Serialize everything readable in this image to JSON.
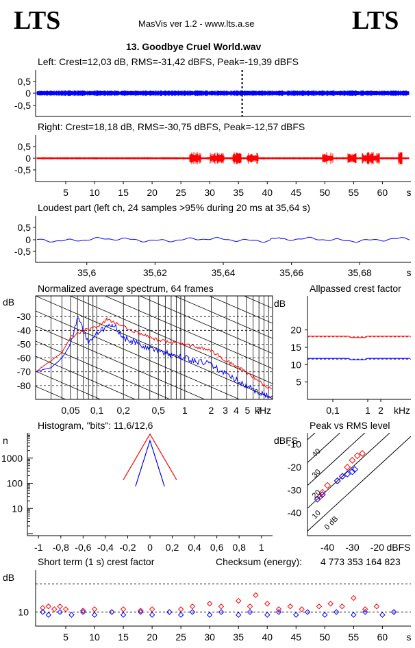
{
  "header": {
    "logo_left": "LTS",
    "logo_right": "LTS",
    "app_title": "MasVis ver 1.2 - www.lts.a.se",
    "file_title": "13. Goodbye Cruel World.wav"
  },
  "colors": {
    "left": "#0000ff",
    "right": "#ff0000",
    "marker": "#000000",
    "grid": "#000000"
  },
  "chart_data": [
    {
      "id": "left_waveform",
      "type": "line",
      "title": "Left: Crest=12,03 dB, RMS=-31,42 dBFS, Peak=-19,39 dBFS",
      "yticks": [
        "0,5",
        "0",
        "-0,5"
      ],
      "ylim": [
        -1,
        1
      ],
      "xlim": [
        0,
        64
      ],
      "marker_x": 35.64,
      "color": "#0000ff",
      "envelope_peak": 0.06
    },
    {
      "id": "right_waveform",
      "type": "line",
      "title": "Right: Crest=18,18 dB, RMS=-30,75 dBFS, Peak=-12,57 dBFS",
      "yticks": [
        "0,5",
        "0",
        "-0,5"
      ],
      "ylim": [
        -1,
        1
      ],
      "xlim": [
        0,
        64
      ],
      "xticks": [
        "5",
        "10",
        "15",
        "20",
        "25",
        "30",
        "35",
        "40",
        "45",
        "50",
        "55",
        "60"
      ],
      "xunit": "s",
      "color": "#ff0000",
      "bursts": [
        [
          26.5,
          28.5
        ],
        [
          30,
          32.5
        ],
        [
          34,
          35.5
        ],
        [
          36.5,
          38.5
        ],
        [
          49.5,
          51.5
        ],
        [
          54,
          55.5
        ],
        [
          56.5,
          59.5
        ],
        [
          62.8,
          63.5
        ]
      ]
    },
    {
      "id": "loudest_part",
      "type": "line",
      "title": "Loudest part (left  ch, 24 samples >95% during 20 ms at 35,64 s)",
      "yticks": [
        "0,5",
        "0",
        "-0,5"
      ],
      "ylim": [
        -1,
        1
      ],
      "xlim": [
        35.585,
        35.695
      ],
      "xticks": [
        "35,6",
        "35,62",
        "35,64",
        "35,66",
        "35,68"
      ],
      "xunit": "s",
      "color": "#0000ff"
    },
    {
      "id": "spectrum",
      "type": "line",
      "title": "Normalized average spectrum, 64 frames",
      "ylabel": "dB",
      "yticks": [
        "-30",
        "-40",
        "-50",
        "-60",
        "-70",
        "-80"
      ],
      "ylim": [
        -90,
        -15
      ],
      "xticks": [
        "0,05",
        "0,1",
        "0,2",
        "0,5",
        "1",
        "2",
        "3",
        "4",
        "5",
        "7"
      ],
      "xunit": "kHz",
      "xscale": "log",
      "series": [
        {
          "color": "#ff0000",
          "points": [
            [
              0.02,
              -70
            ],
            [
              0.03,
              -62
            ],
            [
              0.04,
              -56
            ],
            [
              0.05,
              -45
            ],
            [
              0.07,
              -40
            ],
            [
              0.1,
              -38
            ],
            [
              0.13,
              -32
            ],
            [
              0.2,
              -37
            ],
            [
              0.3,
              -42
            ],
            [
              0.5,
              -47
            ],
            [
              1,
              -50
            ],
            [
              2,
              -55
            ],
            [
              3,
              -62
            ],
            [
              5,
              -70
            ],
            [
              8,
              -80
            ],
            [
              10,
              -83
            ]
          ]
        },
        {
          "color": "#0000ff",
          "points": [
            [
              0.02,
              -70
            ],
            [
              0.03,
              -67
            ],
            [
              0.04,
              -60
            ],
            [
              0.05,
              -50
            ],
            [
              0.06,
              -30
            ],
            [
              0.08,
              -48
            ],
            [
              0.1,
              -42
            ],
            [
              0.15,
              -35
            ],
            [
              0.2,
              -45
            ],
            [
              0.3,
              -50
            ],
            [
              0.5,
              -55
            ],
            [
              1,
              -60
            ],
            [
              2,
              -65
            ],
            [
              3,
              -72
            ],
            [
              5,
              -80
            ],
            [
              7,
              -85
            ],
            [
              10,
              -88
            ]
          ]
        }
      ]
    },
    {
      "id": "allpassed_crest",
      "type": "line",
      "title": "Allpassed crest factor",
      "ylabel": "dB",
      "yticks": [
        "20",
        "15",
        "10",
        "5"
      ],
      "ylim": [
        0,
        30
      ],
      "xticks": [
        "0,1",
        "1",
        "2"
      ],
      "xunit": "kHz",
      "xscale": "log",
      "series": [
        {
          "color": "#ff0000",
          "level": 18.2,
          "dashed_ref": 18.0
        },
        {
          "color": "#0000ff",
          "level": 11.8,
          "dashed_ref": 11.6
        }
      ]
    },
    {
      "id": "histogram",
      "type": "line",
      "title": "Histogram, \"bits\": 11,6/12,6",
      "ylabel": "n",
      "yticks": [
        "1000",
        "100",
        "10"
      ],
      "yscale": "log",
      "xticks": [
        "-1",
        "-0,8",
        "-0,6",
        "-0,4",
        "-0,2",
        "0",
        "0,2",
        "0,4",
        "0,6",
        "0,8",
        "1"
      ],
      "xlim": [
        -1.1,
        1.1
      ],
      "series": [
        {
          "color": "#ff0000",
          "halfwidth": 0.24,
          "peak": 9000
        },
        {
          "color": "#0000ff",
          "halfwidth": 0.13,
          "peak": 5000
        }
      ]
    },
    {
      "id": "peak_vs_rms",
      "type": "scatter",
      "title": "Peak vs RMS level",
      "ylabel": "dBFS",
      "yticks": [
        "-10",
        "-20",
        "-30",
        "-40"
      ],
      "ylim": [
        -50,
        -5
      ],
      "xlabel": "dBFS",
      "xticks": [
        "-40",
        "-30",
        "-20"
      ],
      "xlim": [
        -48,
        -12
      ],
      "diag_labels": [
        "40",
        "30",
        "20",
        "10",
        "0 dB"
      ],
      "series": [
        {
          "color": "#ff0000",
          "points": [
            [
              -43,
              -33
            ],
            [
              -42,
              -31
            ],
            [
              -40,
              -28
            ],
            [
              -36,
              -26
            ],
            [
              -34,
              -24
            ],
            [
              -32,
              -20
            ],
            [
              -30,
              -17
            ],
            [
              -28,
              -15
            ],
            [
              -26,
              -14
            ]
          ]
        },
        {
          "color": "#0000ff",
          "points": [
            [
              -44,
              -34
            ],
            [
              -42,
              -32
            ],
            [
              -36,
              -26
            ],
            [
              -34,
              -24
            ],
            [
              -32,
              -23
            ],
            [
              -30,
              -22
            ],
            [
              -29,
              -21
            ]
          ]
        }
      ]
    },
    {
      "id": "short_term_crest",
      "type": "scatter",
      "title": "Short term (1 s) crest factor",
      "ylabel": "dB",
      "yticks": [
        "10"
      ],
      "ylim": [
        5,
        25
      ],
      "xlim": [
        0,
        64
      ],
      "xticks": [
        "5",
        "10",
        "15",
        "20",
        "25",
        "30",
        "35",
        "40",
        "45",
        "50",
        "55",
        "60"
      ],
      "xunit": "s",
      "dashed_levels": [
        10,
        20
      ],
      "series": [
        {
          "color": "#ff0000",
          "points": [
            [
              1,
              11.5
            ],
            [
              2,
              12
            ],
            [
              3,
              11
            ],
            [
              4,
              12
            ],
            [
              5,
              11
            ],
            [
              8,
              10.5
            ],
            [
              10,
              11
            ],
            [
              13,
              10
            ],
            [
              15,
              11
            ],
            [
              18,
              10.5
            ],
            [
              20,
              11
            ],
            [
              23,
              10
            ],
            [
              25,
              11
            ],
            [
              27,
              12
            ],
            [
              30,
              13
            ],
            [
              32,
              12
            ],
            [
              35,
              14
            ],
            [
              37,
              12
            ],
            [
              38,
              16
            ],
            [
              40,
              13
            ],
            [
              42,
              11
            ],
            [
              44,
              12
            ],
            [
              46,
              11
            ],
            [
              49,
              12
            ],
            [
              51,
              13
            ],
            [
              53,
              12
            ],
            [
              55,
              15
            ],
            [
              57,
              11
            ],
            [
              59,
              12
            ],
            [
              62,
              10
            ]
          ]
        },
        {
          "color": "#0000ff",
          "points": [
            [
              1,
              10
            ],
            [
              2,
              9
            ],
            [
              4,
              10
            ],
            [
              6,
              9
            ],
            [
              8,
              10
            ],
            [
              10,
              9
            ],
            [
              13,
              10
            ],
            [
              15,
              9
            ],
            [
              18,
              10
            ],
            [
              20,
              9
            ],
            [
              23,
              10
            ],
            [
              25,
              9
            ],
            [
              27,
              10
            ],
            [
              30,
              9
            ],
            [
              32,
              10
            ],
            [
              35,
              9
            ],
            [
              37,
              10
            ],
            [
              40,
              9
            ],
            [
              42,
              10
            ],
            [
              45,
              9
            ],
            [
              47,
              10
            ],
            [
              50,
              9
            ],
            [
              52,
              10
            ],
            [
              55,
              9
            ],
            [
              57,
              10
            ],
            [
              60,
              9
            ],
            [
              62,
              10
            ]
          ]
        }
      ]
    }
  ],
  "checksum": {
    "label": "Checksum (energy):",
    "value": "4 773 353 164 823"
  }
}
